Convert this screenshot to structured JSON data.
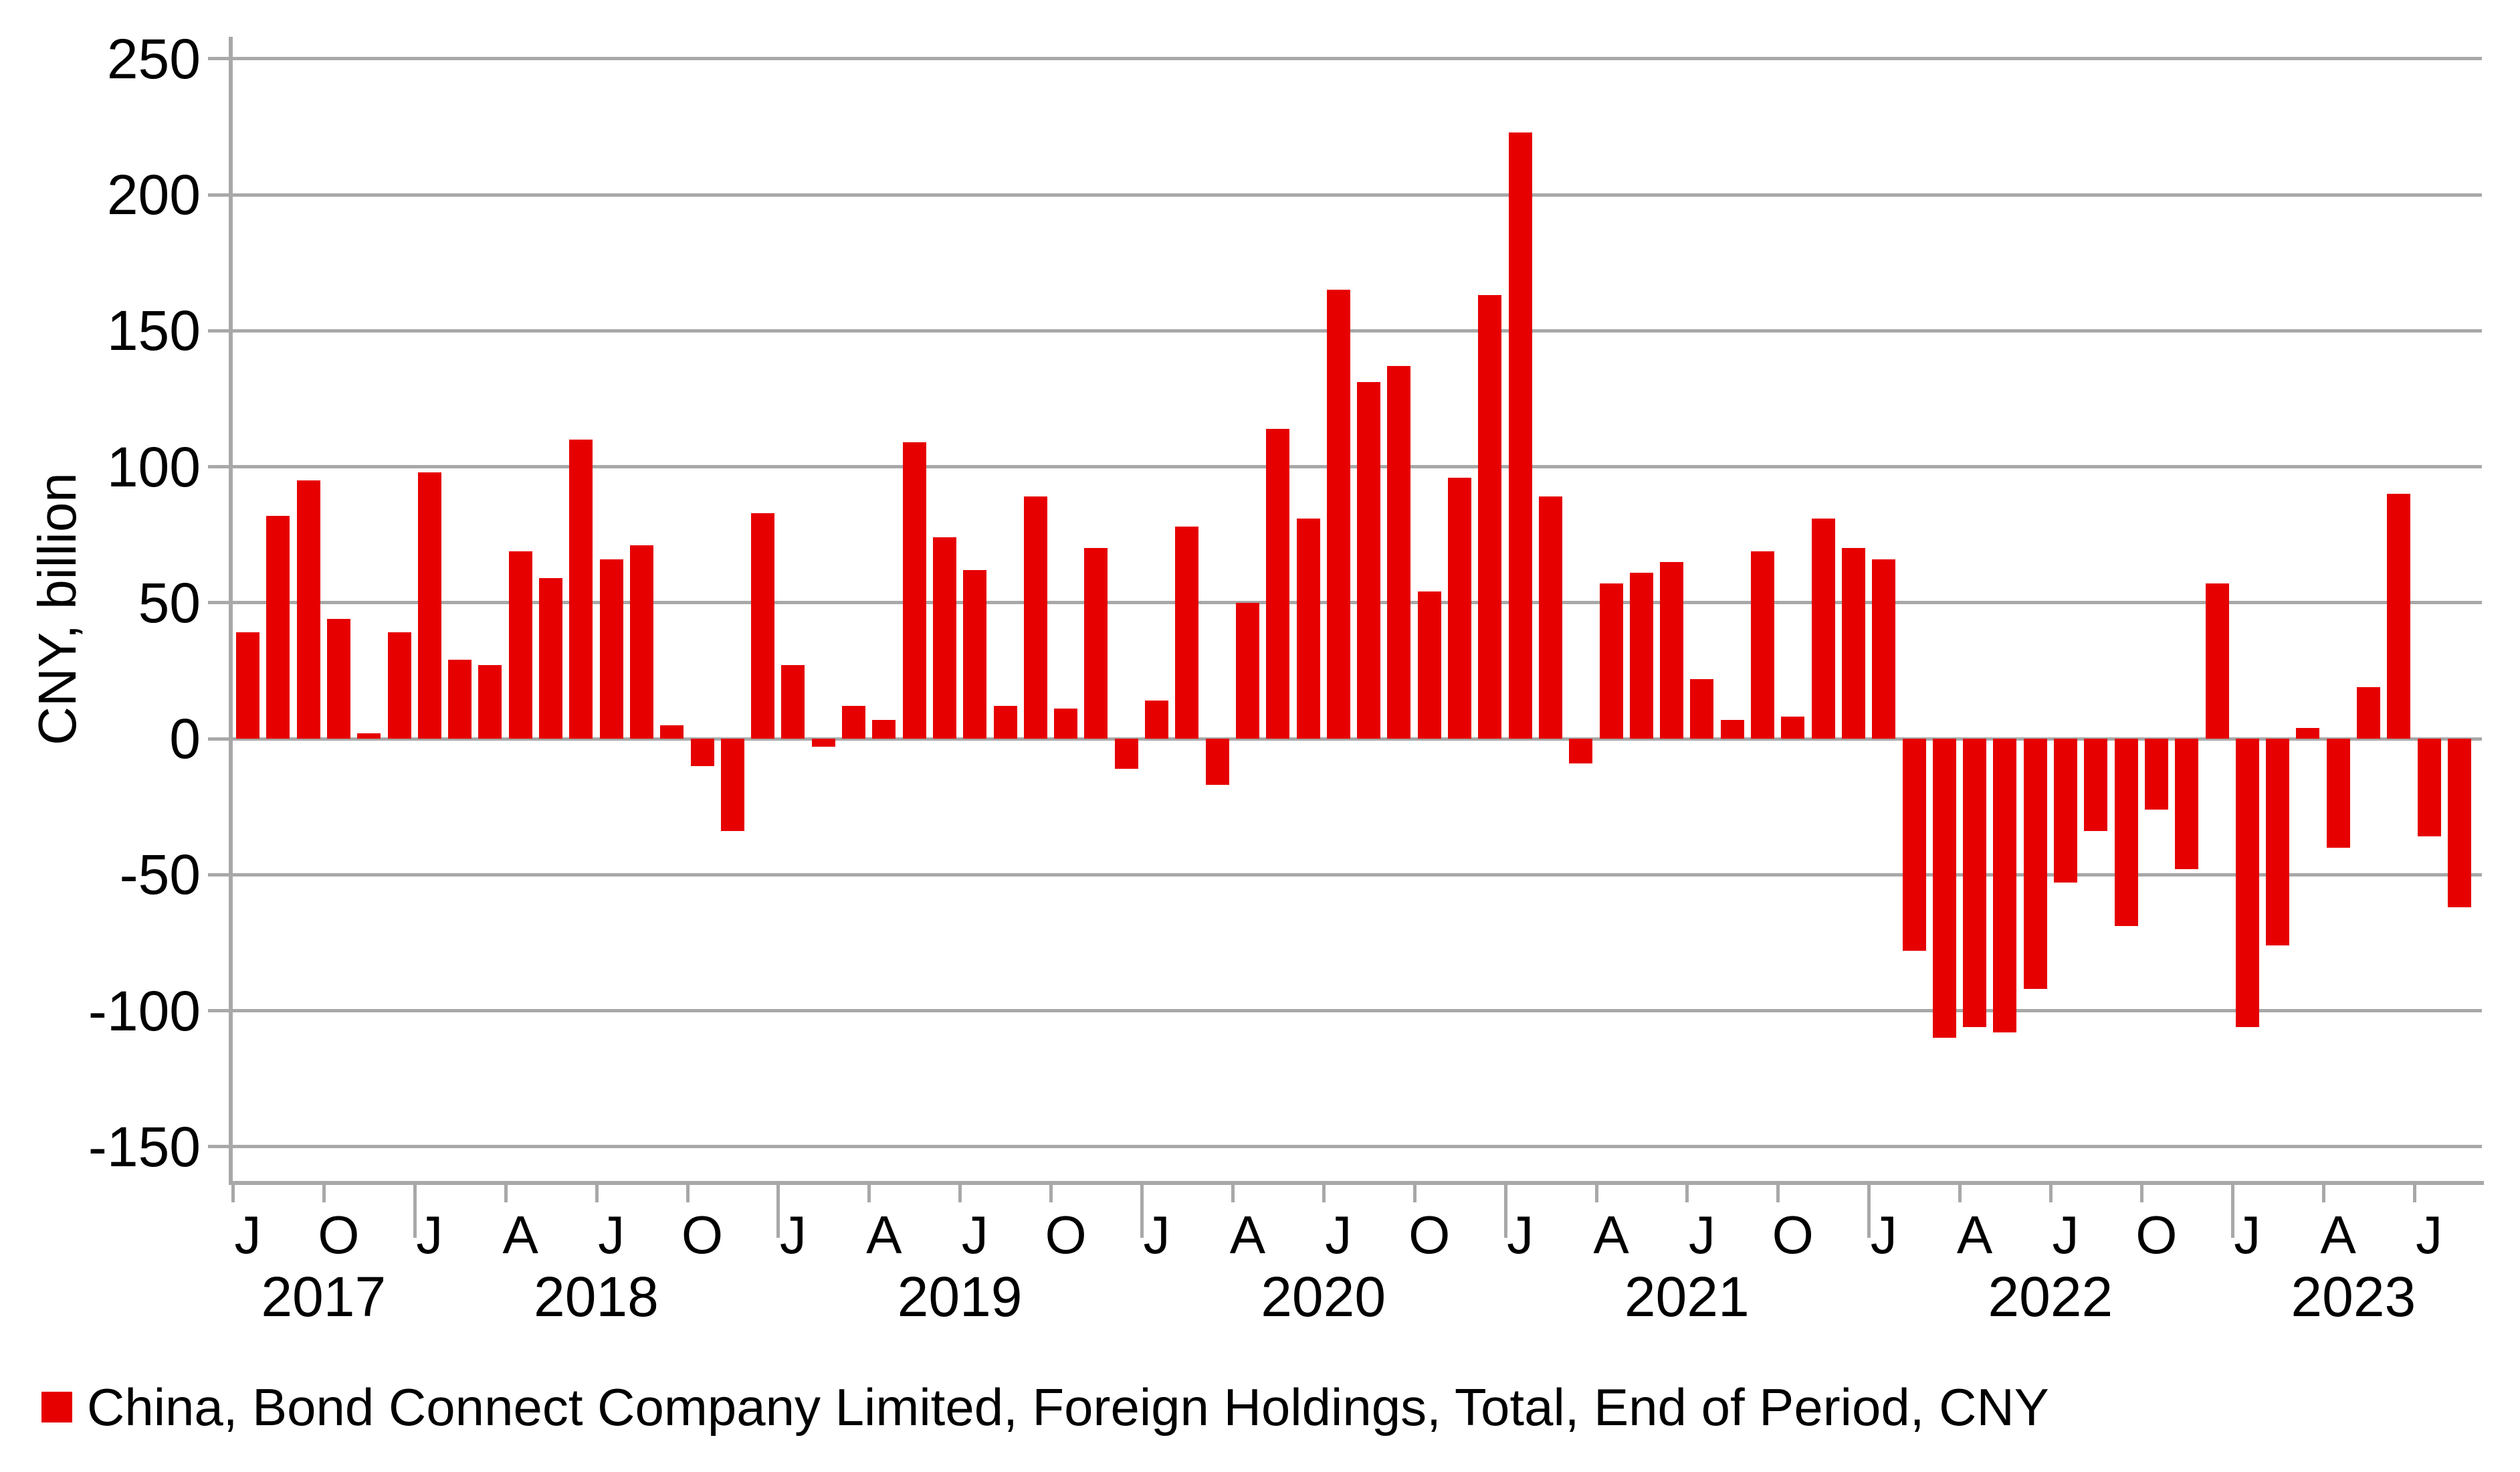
{
  "colors": {
    "bar": "#e60000",
    "grid": "#a8a8a8",
    "text": "#000000",
    "background": "#ffffff"
  },
  "y_axis": {
    "title": "CNY, billion",
    "tick_labels": [
      "250",
      "200",
      "150",
      "100",
      "50",
      "0",
      "-50",
      "-100",
      "-150"
    ]
  },
  "x_axis": {
    "month_tick_letters": [
      "J",
      "O",
      "J",
      "A",
      "J",
      "O",
      "J",
      "A",
      "J",
      "O",
      "J",
      "A",
      "J",
      "O",
      "J",
      "A",
      "J",
      "O",
      "J",
      "A",
      "J",
      "O",
      "J",
      "A",
      "J"
    ],
    "year_labels": [
      "2017",
      "2018",
      "2019",
      "2020",
      "2021",
      "2022",
      "2023"
    ]
  },
  "legend": {
    "label": "China, Bond Connect Company Limited, Foreign Holdings, Total, End of Period, CNY"
  },
  "chart_data": {
    "type": "bar",
    "title": "",
    "xlabel": "",
    "ylabel": "CNY, billion",
    "frequency": "monthly",
    "start_month": "Jul 2017",
    "end_month": "Aug 2023",
    "ylim": [
      -150,
      250
    ],
    "ytick_step": 50,
    "grid": true,
    "legend_position": "bottom-left",
    "series": [
      {
        "name": "China, Bond Connect Company Limited, Foreign Holdings, Total, End of Period, CNY",
        "values": [
          39,
          82,
          95,
          44,
          2,
          39,
          98,
          29,
          27,
          69,
          59,
          110,
          66,
          71,
          5,
          -10,
          -34,
          83,
          27,
          -3,
          12,
          7,
          109,
          74,
          62,
          12,
          89,
          11,
          70,
          -11,
          14,
          78,
          -17,
          50,
          114,
          81,
          165,
          131,
          137,
          54,
          96,
          163,
          223,
          89,
          -9,
          57,
          61,
          65,
          22,
          7,
          69,
          8,
          81,
          70,
          66,
          -78,
          -110,
          -106,
          -108,
          -92,
          -53,
          -34,
          -69,
          -26,
          -48,
          57,
          -106,
          -76,
          4,
          -40,
          19,
          90,
          -36,
          -62
        ]
      }
    ]
  }
}
